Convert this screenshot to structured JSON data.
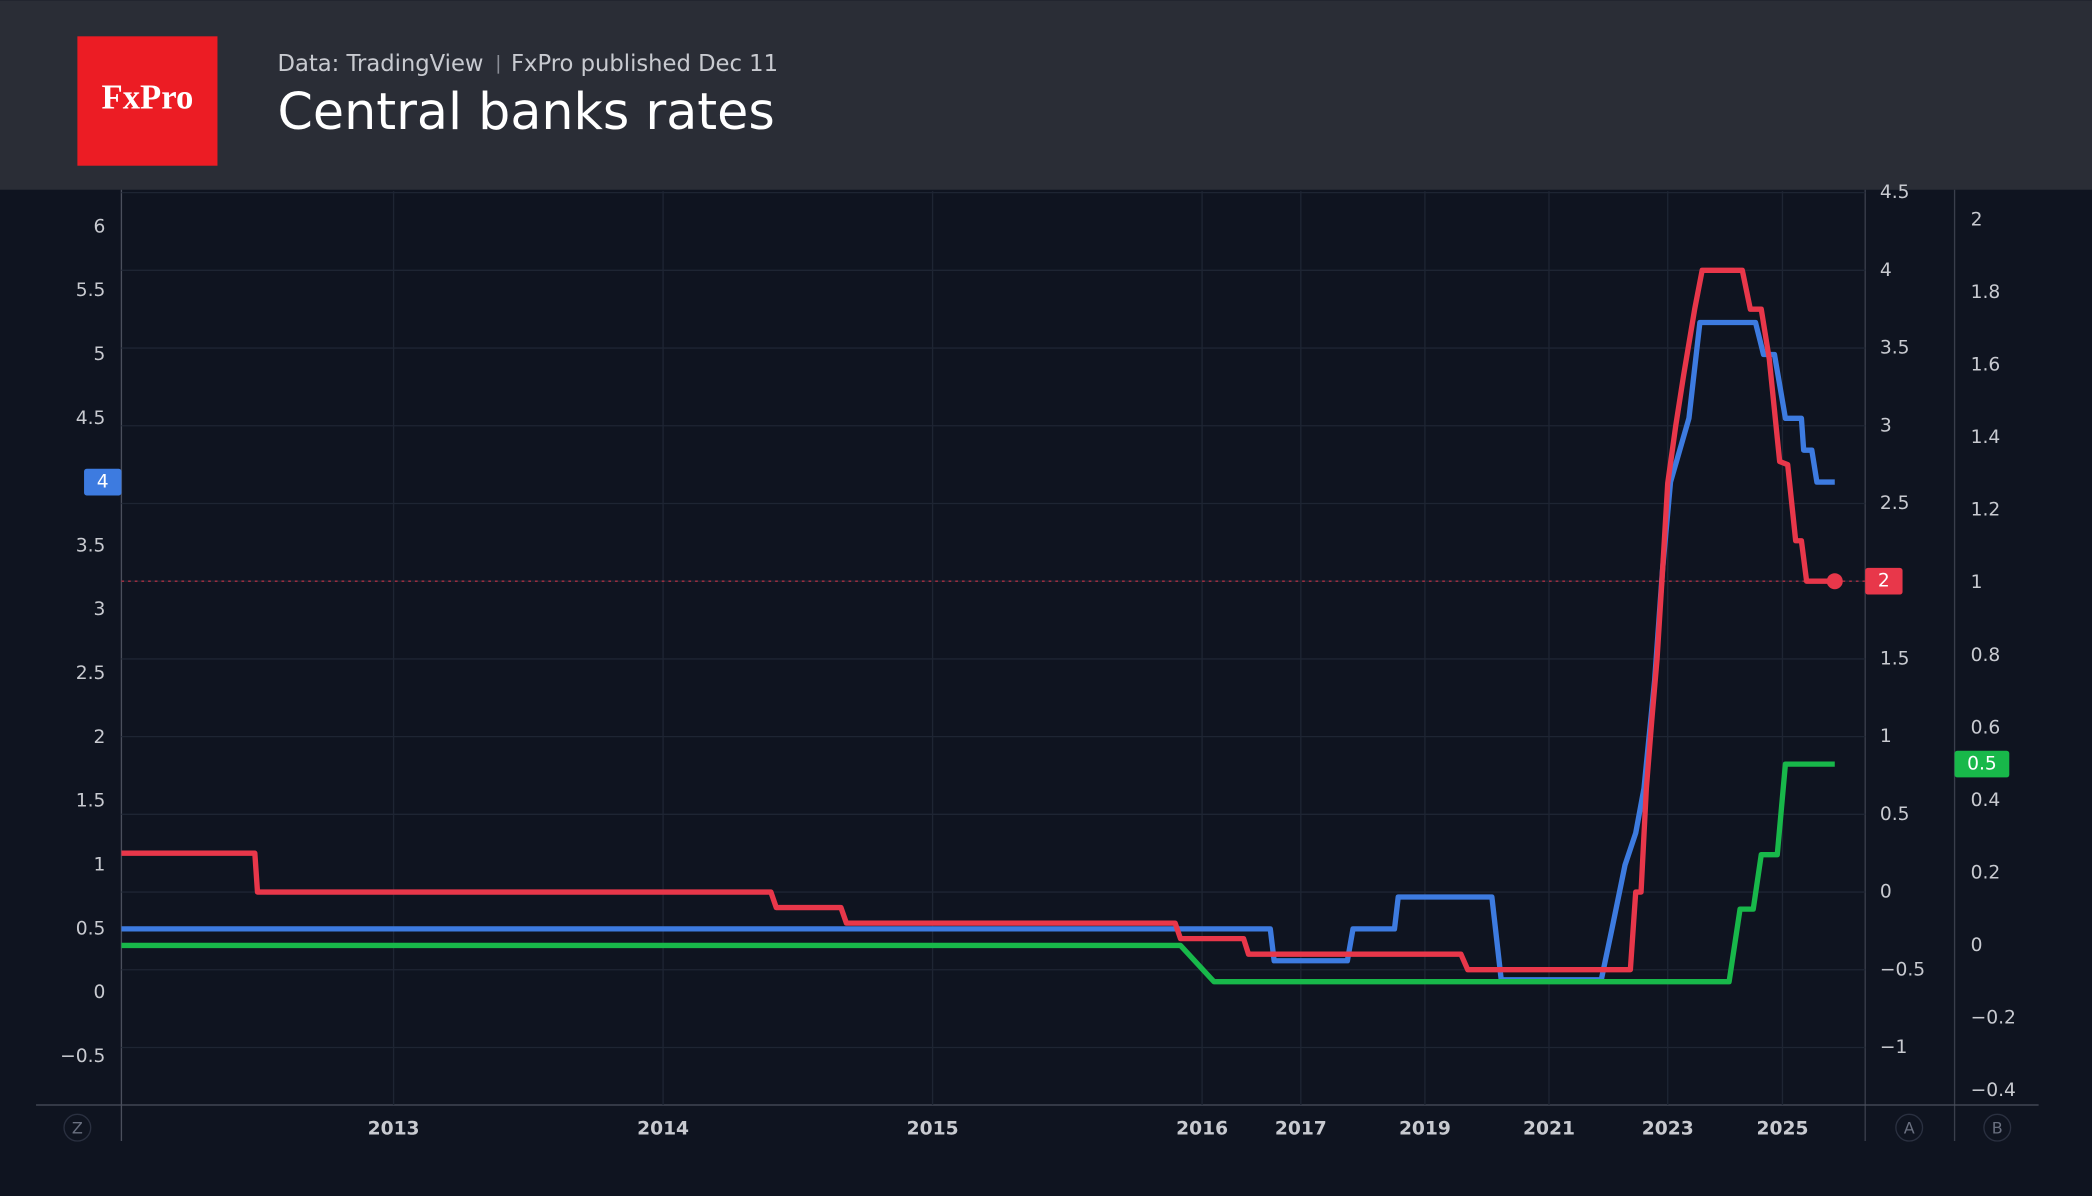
{
  "header": {
    "logo": "FxPro",
    "source": "Data: TradingView",
    "published": "FxPro published Dec 11"
  },
  "chart_data": {
    "type": "line",
    "title": "Central banks rates",
    "axis_badges": [
      "Z",
      "A",
      "B"
    ],
    "xlim": [
      2012,
      2026.44
    ],
    "xticks": [
      2013,
      2014,
      2015,
      2016,
      2017,
      2019,
      2021,
      2023,
      2025
    ],
    "ylim": [
      -0.88,
      6.28
    ],
    "yticks": [
      {
        "value": -0.5,
        "label": "−0.5"
      },
      0,
      0.5,
      1,
      1.5,
      2,
      2.5,
      3,
      3.5,
      4,
      4.5,
      5,
      5.5,
      6
    ],
    "y2lim": [
      -1.37,
      4.51
    ],
    "y2ticks": [
      {
        "value": -1,
        "label": "−1"
      },
      {
        "value": -0.5,
        "label": "−0.5"
      },
      0,
      0.5,
      1,
      1.5,
      2,
      2.5,
      3,
      3.5,
      4,
      4.5
    ],
    "y3lim": [
      -0.44,
      2.08
    ],
    "y3ticks": [
      {
        "value": -0.4,
        "label": "−0.4"
      },
      {
        "value": -0.2,
        "label": "−0.2"
      },
      0,
      0.2,
      0.4,
      0.6,
      0.8,
      1,
      1.2,
      1.4,
      1.6,
      1.8,
      2
    ],
    "grid": true,
    "series": [
      {
        "color": "#3d7be0",
        "axis": "y",
        "x": [
          2012.0,
          2016.69,
          2016.73,
          2017.75,
          2017.84,
          2018.51,
          2018.57,
          2020.08,
          2020.23,
          2021.88,
          2022.06,
          2022.28,
          2022.46,
          2022.6,
          2022.78,
          2022.91,
          2023.05,
          2023.37,
          2023.56,
          2024.53,
          2024.67,
          2024.86,
          2025.05,
          2025.33,
          2025.37,
          2025.51,
          2025.6,
          2025.91
        ],
        "values": [
          0.5,
          0.5,
          0.25,
          0.25,
          0.5,
          0.5,
          0.75,
          0.75,
          0.1,
          0.1,
          0.5,
          1.0,
          1.25,
          1.6,
          2.45,
          3.3,
          4.0,
          4.5,
          5.25,
          5.25,
          5.0,
          5.0,
          4.5,
          4.5,
          4.25,
          4.25,
          4.0,
          4
        ]
      },
      {
        "color": "#e8374a",
        "axis": "y2",
        "x": [
          2012.0,
          2012.49,
          2012.5,
          2014.4,
          2014.42,
          2014.66,
          2014.68,
          2015.9,
          2015.92,
          2016.42,
          2016.47,
          2019.58,
          2019.69,
          2022.37,
          2022.46,
          2022.55,
          2022.64,
          2022.73,
          2022.82,
          2022.91,
          2023.0,
          2023.14,
          2023.28,
          2023.47,
          2023.6,
          2024.3,
          2024.44,
          2024.63,
          2024.77,
          2024.95,
          2025.09,
          2025.23,
          2025.33,
          2025.42,
          2025.91
        ],
        "values": [
          0.25,
          0.25,
          0,
          0,
          -0.1,
          -0.1,
          -0.2,
          -0.2,
          -0.3,
          -0.3,
          -0.4,
          -0.4,
          -0.5,
          -0.5,
          0,
          0,
          0.67,
          1.1,
          1.5,
          2.05,
          2.63,
          3.0,
          3.33,
          3.75,
          4.0,
          4.0,
          3.75,
          3.75,
          3.43,
          2.77,
          2.75,
          2.26,
          2.26,
          2.0,
          2
        ]
      },
      {
        "color": "#18b84a",
        "axis": "y3",
        "x": [
          2012.0,
          2015.92,
          2016.12,
          2024.07,
          2024.26,
          2024.49,
          2024.63,
          2024.91,
          2025.05,
          2025.91
        ],
        "values": [
          0,
          0,
          -0.1,
          -0.1,
          0.1,
          0.1,
          0.25,
          0.25,
          0.5,
          0.5
        ]
      }
    ]
  }
}
